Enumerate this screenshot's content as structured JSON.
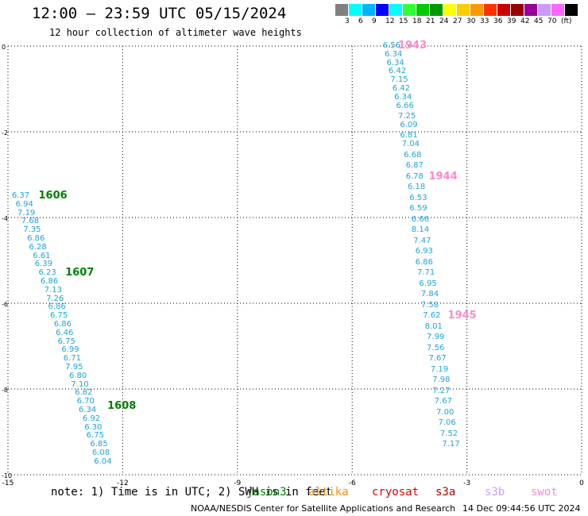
{
  "header": {
    "title": "12:00 – 23:59 UTC 05/15/2024",
    "subtitle": "12 hour collection of altimeter wave heights"
  },
  "color_scale": {
    "colors": [
      "#808080",
      "#00ffff",
      "#00b4ff",
      "#0000ff",
      "#00ffff",
      "#33ff33",
      "#00cc00",
      "#009900",
      "#ffff00",
      "#ffcc00",
      "#ff9900",
      "#ff3300",
      "#cc0000",
      "#990000",
      "#990099",
      "#cc99ff",
      "#ff66ff",
      "#000000"
    ],
    "labels": [
      "3",
      "6",
      "9",
      "12",
      "15",
      "18",
      "21",
      "24",
      "27",
      "30",
      "33",
      "36",
      "39",
      "42",
      "45",
      "70",
      "(ft)"
    ]
  },
  "axes": {
    "y_labels": [
      "0",
      "-2",
      "-4",
      "-6",
      "-8",
      "-10"
    ],
    "x_labels": [
      "-15",
      "-12",
      "-9",
      "-6",
      "-3",
      "0"
    ]
  },
  "chart_data": {
    "type": "scatter",
    "xlim": [
      -15,
      0
    ],
    "ylim": [
      -10,
      0
    ],
    "grid": true,
    "unit": "ft",
    "left_pass": [
      {
        "lon": -14.9,
        "lat": -3.5,
        "v": "6.37"
      },
      {
        "lon": -14.8,
        "lat": -3.7,
        "v": "6.94"
      },
      {
        "lon": -14.75,
        "lat": -3.9,
        "v": "7.19"
      },
      {
        "lon": -14.65,
        "lat": -4.1,
        "v": "7.68"
      },
      {
        "lon": -14.6,
        "lat": -4.3,
        "v": "7.35"
      },
      {
        "lon": -14.5,
        "lat": -4.5,
        "v": "6.86"
      },
      {
        "lon": -14.45,
        "lat": -4.7,
        "v": "6.28"
      },
      {
        "lon": -14.35,
        "lat": -4.9,
        "v": "6.61"
      },
      {
        "lon": -14.3,
        "lat": -5.1,
        "v": "6.39"
      },
      {
        "lon": -14.2,
        "lat": -5.3,
        "v": "6.23"
      },
      {
        "lon": -14.15,
        "lat": -5.5,
        "v": "6.86"
      },
      {
        "lon": -14.05,
        "lat": -5.7,
        "v": "7.13"
      },
      {
        "lon": -14.0,
        "lat": -5.9,
        "v": "7.26"
      },
      {
        "lon": -13.95,
        "lat": -6.1,
        "v": "6.86"
      },
      {
        "lon": -13.9,
        "lat": -6.3,
        "v": "6.75"
      },
      {
        "lon": -13.8,
        "lat": -6.5,
        "v": "6.86"
      },
      {
        "lon": -13.75,
        "lat": -6.7,
        "v": "6.46"
      },
      {
        "lon": -13.7,
        "lat": -6.9,
        "v": "6.75"
      },
      {
        "lon": -13.6,
        "lat": -7.1,
        "v": "6.99"
      },
      {
        "lon": -13.55,
        "lat": -7.3,
        "v": "6.71"
      },
      {
        "lon": -13.5,
        "lat": -7.5,
        "v": "7.95"
      },
      {
        "lon": -13.4,
        "lat": -7.7,
        "v": "6.80"
      },
      {
        "lon": -13.35,
        "lat": -7.9,
        "v": "7.10"
      },
      {
        "lon": -13.25,
        "lat": -8.1,
        "v": "6.82"
      },
      {
        "lon": -13.2,
        "lat": -8.3,
        "v": "6.70"
      },
      {
        "lon": -13.15,
        "lat": -8.5,
        "v": "6.34"
      },
      {
        "lon": -13.05,
        "lat": -8.7,
        "v": "6.92"
      },
      {
        "lon": -13.0,
        "lat": -8.9,
        "v": "6.30"
      },
      {
        "lon": -12.95,
        "lat": -9.1,
        "v": "6.75"
      },
      {
        "lon": -12.85,
        "lat": -9.3,
        "v": "6.85"
      },
      {
        "lon": -12.8,
        "lat": -9.5,
        "v": "6.08"
      },
      {
        "lon": -12.75,
        "lat": -9.7,
        "v": "6.04"
      }
    ],
    "right_pass": [
      {
        "lon": -5.2,
        "lat": 0.0,
        "v": "6.56"
      },
      {
        "lon": -5.15,
        "lat": -0.2,
        "v": "6.34"
      },
      {
        "lon": -5.1,
        "lat": -0.4,
        "v": "6.34"
      },
      {
        "lon": -5.05,
        "lat": -0.6,
        "v": "6.42"
      },
      {
        "lon": -5.0,
        "lat": -0.8,
        "v": "7.15"
      },
      {
        "lon": -4.95,
        "lat": -1.0,
        "v": "6.42"
      },
      {
        "lon": -4.9,
        "lat": -1.2,
        "v": "6.34"
      },
      {
        "lon": -4.85,
        "lat": -1.4,
        "v": "6.66"
      },
      {
        "lon": -4.8,
        "lat": -1.65,
        "v": "7.25"
      },
      {
        "lon": -4.75,
        "lat": -1.85,
        "v": "6.09"
      },
      {
        "lon": -4.75,
        "lat": -2.1,
        "v": "6.81"
      },
      {
        "lon": -4.7,
        "lat": -2.3,
        "v": "7.04"
      },
      {
        "lon": -4.65,
        "lat": -2.55,
        "v": "6.68"
      },
      {
        "lon": -4.6,
        "lat": -2.8,
        "v": "6.87"
      },
      {
        "lon": -4.6,
        "lat": -3.05,
        "v": "6.78"
      },
      {
        "lon": -4.55,
        "lat": -3.3,
        "v": "6.18"
      },
      {
        "lon": -4.5,
        "lat": -3.55,
        "v": "6.53"
      },
      {
        "lon": -4.5,
        "lat": -3.8,
        "v": "6.59"
      },
      {
        "lon": -4.45,
        "lat": -4.05,
        "v": "6.66"
      },
      {
        "lon": -4.45,
        "lat": -4.3,
        "v": "8.14"
      },
      {
        "lon": -4.4,
        "lat": -4.55,
        "v": "7.47"
      },
      {
        "lon": -4.35,
        "lat": -4.8,
        "v": "6.93"
      },
      {
        "lon": -4.35,
        "lat": -5.05,
        "v": "6.86"
      },
      {
        "lon": -4.3,
        "lat": -5.3,
        "v": "7.71"
      },
      {
        "lon": -4.25,
        "lat": -5.55,
        "v": "6.95"
      },
      {
        "lon": -4.2,
        "lat": -5.8,
        "v": "7.84"
      },
      {
        "lon": -4.2,
        "lat": -6.05,
        "v": "7.58"
      },
      {
        "lon": -4.15,
        "lat": -6.3,
        "v": "7.62"
      },
      {
        "lon": -4.1,
        "lat": -6.55,
        "v": "8.01"
      },
      {
        "lon": -4.05,
        "lat": -6.8,
        "v": "7.99"
      },
      {
        "lon": -4.05,
        "lat": -7.05,
        "v": "7.56"
      },
      {
        "lon": -4.0,
        "lat": -7.3,
        "v": "7.67"
      },
      {
        "lon": -3.95,
        "lat": -7.55,
        "v": "7.19"
      },
      {
        "lon": -3.9,
        "lat": -7.8,
        "v": "7.98"
      },
      {
        "lon": -3.9,
        "lat": -8.05,
        "v": "7.27"
      },
      {
        "lon": -3.85,
        "lat": -8.3,
        "v": "7.67"
      },
      {
        "lon": -3.8,
        "lat": -8.55,
        "v": "7.00"
      },
      {
        "lon": -3.75,
        "lat": -8.8,
        "v": "7.06"
      },
      {
        "lon": -3.7,
        "lat": -9.05,
        "v": "7.52"
      },
      {
        "lon": -3.65,
        "lat": -9.3,
        "v": "7.17"
      }
    ],
    "time_labels": [
      {
        "lon": -14.2,
        "lat": -3.5,
        "t": "1606",
        "color": "#008000"
      },
      {
        "lon": -13.5,
        "lat": -5.3,
        "t": "1607",
        "color": "#008000"
      },
      {
        "lon": -12.4,
        "lat": -8.4,
        "t": "1608",
        "color": "#008000"
      },
      {
        "lon": -4.8,
        "lat": 0.0,
        "t": "1943",
        "color": "#ff88cc"
      },
      {
        "lon": -4.0,
        "lat": -3.05,
        "t": "1944",
        "color": "#ff88cc"
      },
      {
        "lon": -3.5,
        "lat": -6.3,
        "t": "1945",
        "color": "#ff88cc"
      }
    ]
  },
  "footer": {
    "note": "note: 1) Time is in UTC; 2) SWH is in feet",
    "legend": [
      {
        "label": "jason3",
        "color": "#008000"
      },
      {
        "label": "altika",
        "color": "#ff8c00"
      },
      {
        "label": "cryosat",
        "color": "#e60000"
      },
      {
        "label": "s3a",
        "color": "#b00000"
      },
      {
        "label": "s3b",
        "color": "#c8a0ff"
      },
      {
        "label": "swot",
        "color": "#ff88cc"
      }
    ],
    "credit": "NOAA/NESDIS Center for Satellite Applications and Research",
    "timestamp": "14 Dec 09:44:56 UTC 2024"
  }
}
